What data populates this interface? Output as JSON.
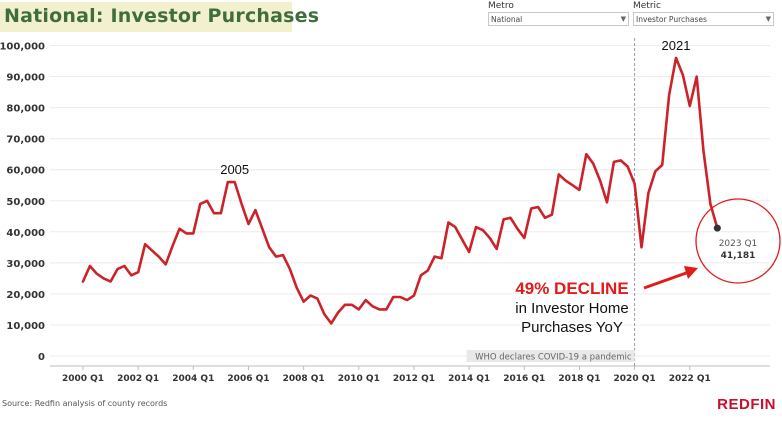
{
  "header": {
    "title": "National: Investor Purchases"
  },
  "filters": [
    {
      "label": "Metro",
      "value": "National"
    },
    {
      "label": "Metric",
      "value": "Investor Purchases"
    }
  ],
  "source": "Source: Redfin analysis of county records",
  "brand": "REDFIN",
  "colors": {
    "line": "#cc2229",
    "annotation": "#e21b1b",
    "title": "#3f6e3c",
    "title_bg": "#f3f0cf"
  },
  "chart_data": {
    "type": "line",
    "title": "National: Investor Purchases",
    "xlabel": "",
    "ylabel": "",
    "ylim": [
      0,
      100000
    ],
    "yticks": [
      0,
      10000,
      20000,
      30000,
      40000,
      50000,
      60000,
      70000,
      80000,
      90000,
      100000
    ],
    "ytick_labels": [
      "0",
      "10,000",
      "20,000",
      "30,000",
      "40,000",
      "50,000",
      "60,000",
      "70,000",
      "80,000",
      "90,000",
      "100,000"
    ],
    "xtick_labels": [
      "2000 Q1",
      "2002 Q1",
      "2004 Q1",
      "2006 Q1",
      "2008 Q1",
      "2010 Q1",
      "2012 Q1",
      "2014 Q1",
      "2016 Q1",
      "2018 Q1",
      "2020 Q1",
      "2022 Q1"
    ],
    "grid": true,
    "series": [
      {
        "x": [
          "2000 Q1",
          "2000 Q2",
          "2000 Q3",
          "2000 Q4",
          "2001 Q1",
          "2001 Q2",
          "2001 Q3",
          "2001 Q4",
          "2002 Q1",
          "2002 Q2",
          "2002 Q3",
          "2002 Q4",
          "2003 Q1",
          "2003 Q2",
          "2003 Q3",
          "2003 Q4",
          "2004 Q1",
          "2004 Q2",
          "2004 Q3",
          "2004 Q4",
          "2005 Q1",
          "2005 Q2",
          "2005 Q3",
          "2005 Q4",
          "2006 Q1",
          "2006 Q2",
          "2006 Q3",
          "2006 Q4",
          "2007 Q1",
          "2007 Q2",
          "2007 Q3",
          "2007 Q4",
          "2008 Q1",
          "2008 Q2",
          "2008 Q3",
          "2008 Q4",
          "2009 Q1",
          "2009 Q2",
          "2009 Q3",
          "2009 Q4",
          "2010 Q1",
          "2010 Q2",
          "2010 Q3",
          "2010 Q4",
          "2011 Q1",
          "2011 Q2",
          "2011 Q3",
          "2011 Q4",
          "2012 Q1",
          "2012 Q2",
          "2012 Q3",
          "2012 Q4",
          "2013 Q1",
          "2013 Q2",
          "2013 Q3",
          "2013 Q4",
          "2014 Q1",
          "2014 Q2",
          "2014 Q3",
          "2014 Q4",
          "2015 Q1",
          "2015 Q2",
          "2015 Q3",
          "2015 Q4",
          "2016 Q1",
          "2016 Q2",
          "2016 Q3",
          "2016 Q4",
          "2017 Q1",
          "2017 Q2",
          "2017 Q3",
          "2017 Q4",
          "2018 Q1",
          "2018 Q2",
          "2018 Q3",
          "2018 Q4",
          "2019 Q1",
          "2019 Q2",
          "2019 Q3",
          "2019 Q4",
          "2020 Q1",
          "2020 Q2",
          "2020 Q3",
          "2020 Q4",
          "2021 Q1",
          "2021 Q2",
          "2021 Q3",
          "2021 Q4",
          "2022 Q1",
          "2022 Q2",
          "2022 Q3",
          "2022 Q4",
          "2023 Q1"
        ],
        "values": [
          24000,
          29000,
          26500,
          25000,
          24000,
          28000,
          29000,
          26000,
          27000,
          36000,
          34000,
          32000,
          29500,
          35500,
          41000,
          39500,
          39500,
          49000,
          50000,
          46000,
          46000,
          56000,
          56000,
          49000,
          42500,
          47000,
          41000,
          35000,
          32000,
          32500,
          28000,
          22000,
          17500,
          19500,
          18500,
          13500,
          10500,
          14000,
          16500,
          16500,
          15000,
          18000,
          16000,
          15000,
          15000,
          19000,
          19000,
          18000,
          19500,
          26000,
          27500,
          32000,
          31500,
          43000,
          41500,
          37500,
          33500,
          41500,
          40500,
          38000,
          34500,
          44000,
          44500,
          41000,
          38000,
          47500,
          48000,
          44500,
          45500,
          58500,
          56500,
          55000,
          53500,
          65000,
          62000,
          56500,
          49500,
          62500,
          63000,
          61000,
          55500,
          35000,
          52500,
          59500,
          61500,
          84000,
          96000,
          90500,
          80500,
          90000,
          66000,
          49000,
          41181
        ]
      }
    ],
    "annotations": {
      "peak_2005": "2005",
      "peak_2021": "2021",
      "pandemic": "WHO declares COVID-19 a pandemic",
      "last_period": "2023 Q1",
      "last_value_label": "41,181",
      "decline_headline": "49% DECLINE",
      "decline_sub1": "in Investor Home",
      "decline_sub2": "Purchases YoY"
    }
  }
}
